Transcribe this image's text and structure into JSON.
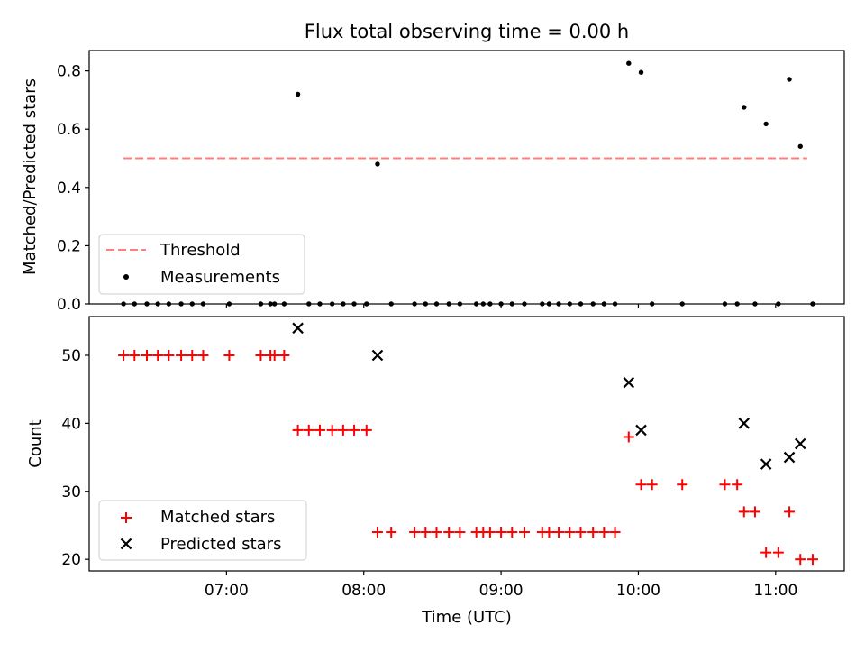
{
  "figure": {
    "title": "Flux total observing time = 0.00 h"
  },
  "chart_data": [
    {
      "type": "scatter",
      "title": "Flux total observing time = 0.00 h",
      "xlabel": "",
      "ylabel": "Matched/Predicted stars",
      "x_unit": "hours UTC",
      "xlim": [
        6.0,
        11.5
      ],
      "ylim": [
        0.0,
        0.87
      ],
      "yticks": [
        0.0,
        0.2,
        0.4,
        0.6,
        0.8
      ],
      "ytick_labels": [
        "0.0",
        "0.2",
        "0.4",
        "0.6",
        "0.8"
      ],
      "grid": false,
      "legend_position": "lower-left",
      "threshold": {
        "name": "Threshold",
        "value": 0.5,
        "x_range": [
          6.25,
          11.23
        ],
        "color": "#ff7f7f",
        "style": "dashed"
      },
      "series": [
        {
          "name": "Measurements",
          "marker": "dot",
          "color": "#000000",
          "x": [
            6.25,
            6.33,
            6.42,
            6.5,
            6.58,
            6.67,
            6.75,
            6.83,
            7.02,
            7.25,
            7.32,
            7.35,
            7.42,
            7.52,
            7.6,
            7.68,
            7.77,
            7.85,
            7.93,
            8.02,
            8.1,
            8.2,
            8.37,
            8.45,
            8.53,
            8.62,
            8.7,
            8.82,
            8.87,
            8.92,
            9.0,
            9.08,
            9.17,
            9.3,
            9.35,
            9.42,
            9.5,
            9.58,
            9.67,
            9.75,
            9.83,
            9.93,
            10.02,
            10.1,
            10.32,
            10.63,
            10.72,
            10.77,
            10.85,
            10.93,
            11.02,
            11.1,
            11.18,
            11.27
          ],
          "y": [
            0,
            0,
            0,
            0,
            0,
            0,
            0,
            0,
            0,
            0,
            0,
            0,
            0,
            0.72,
            0,
            0,
            0,
            0,
            0,
            0,
            0.48,
            0,
            0,
            0,
            0,
            0,
            0,
            0,
            0,
            0,
            0,
            0,
            0,
            0,
            0,
            0,
            0,
            0,
            0,
            0,
            0,
            0.826,
            0.795,
            0,
            0,
            0,
            0,
            0.675,
            0,
            0.618,
            0,
            0.771,
            0.541,
            0
          ]
        }
      ]
    },
    {
      "type": "scatter",
      "title": "",
      "xlabel": "Time (UTC)",
      "ylabel": "Count",
      "x_unit": "hours UTC",
      "xlim": [
        6.0,
        11.5
      ],
      "ylim": [
        18.3,
        55.7
      ],
      "xticks": [
        7,
        8,
        9,
        10,
        11
      ],
      "xtick_labels": [
        "07:00",
        "08:00",
        "09:00",
        "10:00",
        "11:00"
      ],
      "yticks": [
        20,
        30,
        40,
        50
      ],
      "ytick_labels": [
        "20",
        "30",
        "40",
        "50"
      ],
      "grid": false,
      "legend_position": "lower-left",
      "series": [
        {
          "name": "Matched stars",
          "marker": "plus",
          "color": "#ff0000",
          "x": [
            6.25,
            6.33,
            6.42,
            6.5,
            6.58,
            6.67,
            6.75,
            6.83,
            7.02,
            7.25,
            7.32,
            7.35,
            7.42,
            7.52,
            7.6,
            7.68,
            7.77,
            7.85,
            7.93,
            8.02,
            8.1,
            8.2,
            8.37,
            8.45,
            8.53,
            8.62,
            8.7,
            8.82,
            8.87,
            8.92,
            9.0,
            9.08,
            9.17,
            9.3,
            9.35,
            9.42,
            9.5,
            9.58,
            9.67,
            9.75,
            9.83,
            9.93,
            10.02,
            10.1,
            10.32,
            10.63,
            10.72,
            10.77,
            10.85,
            10.93,
            11.02,
            11.1,
            11.18,
            11.27
          ],
          "y": [
            50,
            50,
            50,
            50,
            50,
            50,
            50,
            50,
            50,
            50,
            50,
            50,
            50,
            39,
            39,
            39,
            39,
            39,
            39,
            39,
            24,
            24,
            24,
            24,
            24,
            24,
            24,
            24,
            24,
            24,
            24,
            24,
            24,
            24,
            24,
            24,
            24,
            24,
            24,
            24,
            24,
            38,
            31,
            31,
            31,
            31,
            31,
            27,
            27,
            21,
            21,
            27,
            20,
            20
          ]
        },
        {
          "name": "Predicted stars",
          "marker": "x",
          "color": "#000000",
          "x": [
            7.52,
            8.1,
            9.93,
            10.02,
            10.77,
            10.93,
            11.1,
            11.18
          ],
          "y": [
            54,
            50,
            46,
            39,
            40,
            34,
            35,
            37
          ]
        }
      ]
    }
  ]
}
